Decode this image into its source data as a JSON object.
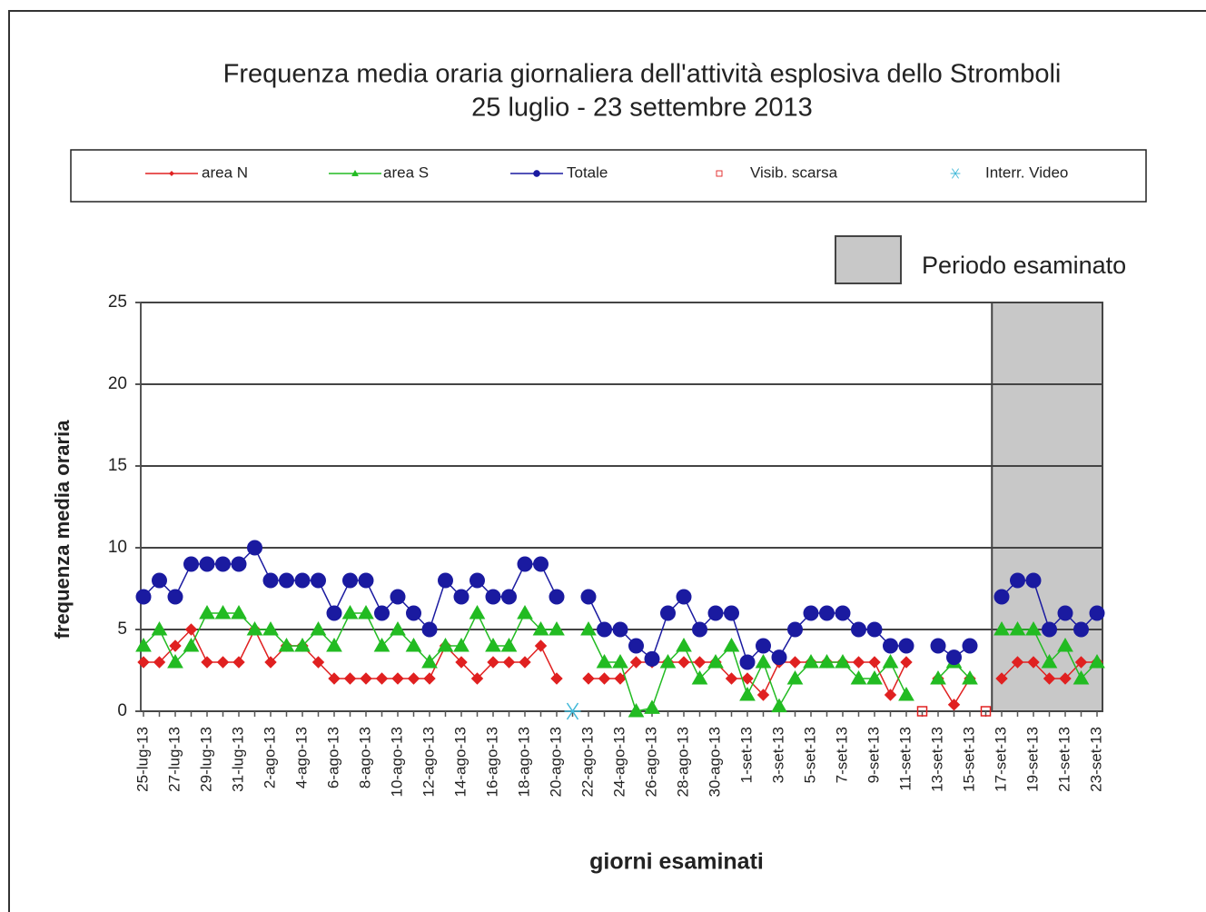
{
  "chart_data": {
    "type": "line",
    "title": "Frequenza media oraria giornaliera dell'attività esplosiva dello Stromboli",
    "subtitle": "25 luglio  - 23 settembre 2013",
    "x_label": "giorni esaminati",
    "y_label": "frequenza  media oraria",
    "categories": [
      "25-lug-13",
      null,
      "27-lug-13",
      null,
      "29-lug-13",
      null,
      "31-lug-13",
      null,
      "2-ago-13",
      null,
      "4-ago-13",
      null,
      "6-ago-13",
      null,
      "8-ago-13",
      null,
      "10-ago-13",
      null,
      "12-ago-13",
      null,
      "14-ago-13",
      null,
      "16-ago-13",
      null,
      "18-ago-13",
      null,
      "20-ago-13",
      null,
      "22-ago-13",
      null,
      "24-ago-13",
      null,
      "26-ago-13",
      null,
      "28-ago-13",
      null,
      "30-ago-13",
      null,
      "1-set-13",
      null,
      "3-set-13",
      null,
      "5-set-13",
      null,
      "7-set-13",
      null,
      "9-set-13",
      null,
      "11-set-13",
      null,
      "13-set-13",
      null,
      "15-set-13",
      null,
      "17-set-13",
      null,
      "19-set-13",
      null,
      "21-set-13",
      null,
      "23-set-13"
    ],
    "ylim": [
      0,
      25
    ],
    "yticks": [
      0,
      5,
      10,
      15,
      20,
      25
    ],
    "grid": true,
    "highlight": {
      "label": "Periodo esaminato",
      "from": "17-set-13",
      "to": "23-set-13",
      "color": "#c8c8c8"
    },
    "series": [
      {
        "name": "area N",
        "color": "#e02020",
        "marker": "diamond",
        "line": true,
        "values": [
          3,
          3,
          4,
          5,
          3,
          3,
          3,
          5,
          3,
          4,
          4,
          3,
          2,
          2,
          2,
          2,
          2,
          2,
          2,
          4,
          3,
          2,
          3,
          3,
          3,
          4,
          2,
          null,
          2,
          2,
          2,
          3,
          3,
          3,
          3,
          3,
          3,
          2,
          2,
          1,
          3,
          3,
          3,
          3,
          3,
          3,
          3,
          1,
          3,
          null,
          2,
          0.4,
          2,
          null,
          2,
          3,
          3,
          2,
          2,
          3,
          3
        ]
      },
      {
        "name": "area S",
        "color": "#22bb22",
        "marker": "triangle",
        "line": true,
        "values": [
          4,
          5,
          3,
          4,
          6,
          6,
          6,
          5,
          5,
          4,
          4,
          5,
          4,
          6,
          6,
          4,
          5,
          4,
          3,
          4,
          4,
          6,
          4,
          4,
          6,
          5,
          5,
          null,
          5,
          3,
          3,
          0,
          0.2,
          3,
          4,
          2,
          3,
          4,
          1,
          3,
          0.3,
          2,
          3,
          3,
          3,
          2,
          2,
          3,
          1,
          null,
          2,
          3,
          2,
          null,
          5,
          5,
          5,
          3,
          4,
          2,
          3
        ]
      },
      {
        "name": "Totale",
        "color": "#1a1aa0",
        "marker": "circle",
        "line": true,
        "values": [
          7,
          8,
          7,
          9,
          9,
          9,
          9,
          10,
          8,
          8,
          8,
          8,
          6,
          8,
          8,
          6,
          7,
          6,
          5,
          8,
          7,
          8,
          7,
          7,
          9,
          9,
          7,
          null,
          7,
          5,
          5,
          4,
          3.2,
          6,
          7,
          5,
          6,
          6,
          3,
          4,
          3.3,
          5,
          6,
          6,
          6,
          5,
          5,
          4,
          4,
          null,
          4,
          3.3,
          4,
          null,
          7,
          8,
          8,
          5,
          6,
          5,
          6
        ]
      },
      {
        "name": "Visib. scarsa",
        "color": "#e02020",
        "marker": "square",
        "line": false,
        "values": [
          null,
          null,
          null,
          null,
          null,
          null,
          null,
          null,
          null,
          null,
          null,
          null,
          null,
          null,
          null,
          null,
          null,
          null,
          null,
          null,
          null,
          null,
          null,
          null,
          null,
          null,
          null,
          null,
          null,
          null,
          null,
          null,
          null,
          null,
          null,
          null,
          null,
          null,
          null,
          null,
          null,
          null,
          null,
          null,
          null,
          null,
          null,
          null,
          null,
          0,
          null,
          null,
          null,
          0,
          null,
          null,
          null,
          null,
          null,
          null,
          null
        ]
      },
      {
        "name": "Interr. Video",
        "color": "#40b8d8",
        "marker": "star",
        "line": false,
        "values": [
          null,
          null,
          null,
          null,
          null,
          null,
          null,
          null,
          null,
          null,
          null,
          null,
          null,
          null,
          null,
          null,
          null,
          null,
          null,
          null,
          null,
          null,
          null,
          null,
          null,
          null,
          null,
          0,
          null,
          null,
          null,
          null,
          null,
          null,
          null,
          null,
          null,
          null,
          null,
          null,
          null,
          null,
          null,
          null,
          null,
          null,
          null,
          null,
          null,
          null,
          null,
          null,
          null,
          null,
          null,
          null,
          null,
          null,
          null,
          null,
          null
        ]
      }
    ]
  }
}
